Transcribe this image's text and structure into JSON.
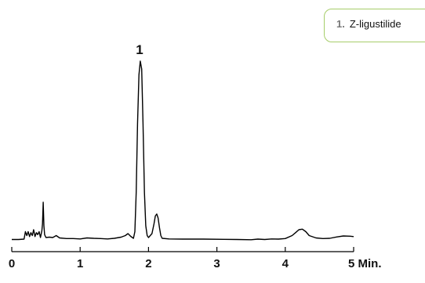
{
  "chart_data": {
    "type": "line",
    "title": "",
    "xlabel": "",
    "ylabel": "",
    "xlim": [
      0,
      5
    ],
    "x_ticks": [
      "0",
      "1",
      "2",
      "3",
      "4",
      "5"
    ],
    "x_unit_label": "Min.",
    "grid": false,
    "legend_position": "top-right",
    "legend": [
      {
        "number": "1.",
        "name": "Z-ligustilide"
      }
    ],
    "peak_labels": [
      {
        "label": "1",
        "x": 1.88
      }
    ],
    "line_color": "#000000",
    "legend_border_color": "#a6cd6a",
    "series": [
      {
        "points": [
          [
            0.0,
            1.0
          ],
          [
            0.1,
            1.0
          ],
          [
            0.18,
            1.2
          ],
          [
            0.2,
            5.0
          ],
          [
            0.22,
            3.0
          ],
          [
            0.24,
            5.0
          ],
          [
            0.26,
            2.5
          ],
          [
            0.28,
            4.5
          ],
          [
            0.3,
            3.0
          ],
          [
            0.32,
            6.0
          ],
          [
            0.34,
            2.5
          ],
          [
            0.36,
            4.5
          ],
          [
            0.38,
            3.5
          ],
          [
            0.4,
            5.0
          ],
          [
            0.42,
            2.0
          ],
          [
            0.44,
            5.5
          ],
          [
            0.45,
            9.0
          ],
          [
            0.46,
            20.0
          ],
          [
            0.47,
            8.0
          ],
          [
            0.48,
            3.5
          ],
          [
            0.5,
            2.0
          ],
          [
            0.55,
            2.2
          ],
          [
            0.6,
            2.0
          ],
          [
            0.65,
            3.0
          ],
          [
            0.7,
            1.8
          ],
          [
            0.8,
            1.5
          ],
          [
            0.9,
            1.5
          ],
          [
            1.0,
            1.3
          ],
          [
            1.1,
            1.8
          ],
          [
            1.2,
            1.6
          ],
          [
            1.3,
            1.5
          ],
          [
            1.4,
            1.3
          ],
          [
            1.5,
            1.6
          ],
          [
            1.6,
            2.2
          ],
          [
            1.66,
            3.0
          ],
          [
            1.7,
            4.0
          ],
          [
            1.74,
            2.6
          ],
          [
            1.78,
            1.6
          ],
          [
            1.8,
            5.0
          ],
          [
            1.82,
            25.0
          ],
          [
            1.84,
            60.0
          ],
          [
            1.86,
            85.0
          ],
          [
            1.88,
            92.0
          ],
          [
            1.9,
            88.0
          ],
          [
            1.92,
            60.0
          ],
          [
            1.94,
            25.0
          ],
          [
            1.96,
            8.0
          ],
          [
            1.98,
            3.0
          ],
          [
            2.0,
            2.0
          ],
          [
            2.05,
            4.0
          ],
          [
            2.08,
            9.0
          ],
          [
            2.1,
            13.0
          ],
          [
            2.12,
            14.0
          ],
          [
            2.14,
            12.0
          ],
          [
            2.16,
            7.0
          ],
          [
            2.18,
            3.0
          ],
          [
            2.2,
            1.6
          ],
          [
            2.3,
            1.3
          ],
          [
            2.5,
            1.2
          ],
          [
            2.8,
            1.2
          ],
          [
            3.1,
            1.1
          ],
          [
            3.3,
            1.0
          ],
          [
            3.5,
            0.9
          ],
          [
            3.6,
            1.2
          ],
          [
            3.7,
            1.0
          ],
          [
            3.8,
            1.3
          ],
          [
            3.9,
            1.2
          ],
          [
            4.0,
            1.5
          ],
          [
            4.1,
            3.0
          ],
          [
            4.15,
            4.5
          ],
          [
            4.2,
            6.0
          ],
          [
            4.25,
            6.3
          ],
          [
            4.3,
            5.0
          ],
          [
            4.35,
            3.0
          ],
          [
            4.45,
            1.8
          ],
          [
            4.55,
            1.5
          ],
          [
            4.65,
            1.6
          ],
          [
            4.75,
            2.3
          ],
          [
            4.85,
            2.8
          ],
          [
            4.95,
            2.7
          ],
          [
            5.0,
            2.5
          ]
        ]
      }
    ]
  }
}
